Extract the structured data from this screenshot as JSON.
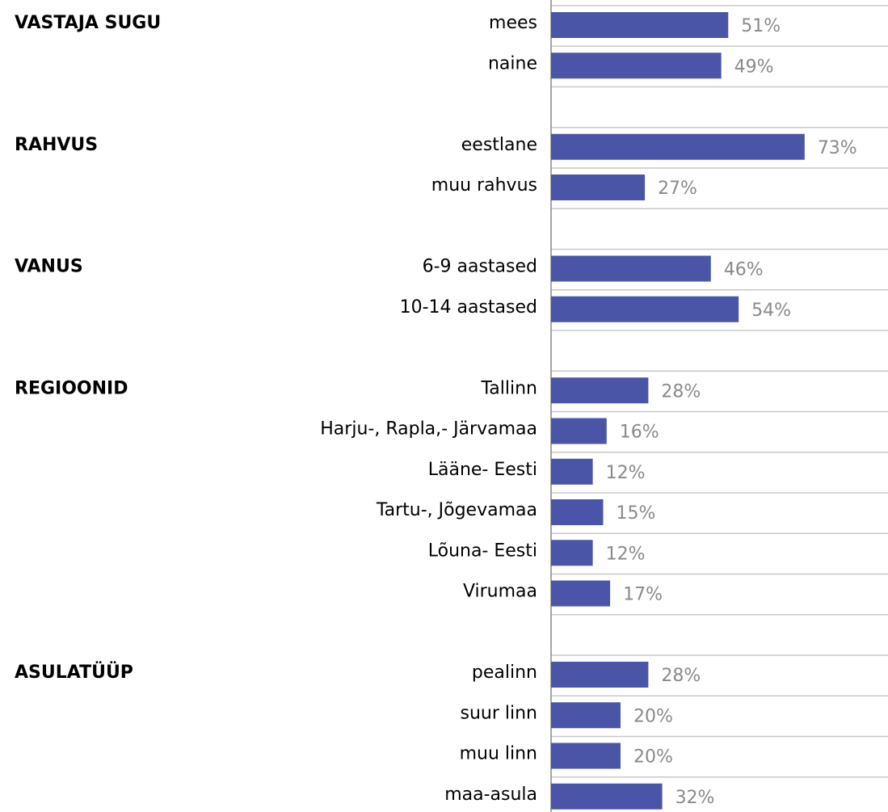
{
  "chart_data": {
    "type": "bar",
    "orientation": "horizontal",
    "color": "#4a55a8",
    "xlim": [
      0,
      97
    ],
    "groups": [
      {
        "label": "VASTAJA SUGU",
        "categories": [
          "mees",
          "naine"
        ],
        "values": [
          51,
          49
        ],
        "value_labels": [
          "51%",
          "49%"
        ]
      },
      {
        "label": "RAHVUS",
        "categories": [
          "eestlane",
          "muu rahvus"
        ],
        "values": [
          73,
          27
        ],
        "value_labels": [
          "73%",
          "27%"
        ]
      },
      {
        "label": "VANUS",
        "categories": [
          "6-9 aastased",
          "10-14 aastased"
        ],
        "values": [
          46,
          54
        ],
        "value_labels": [
          "46%",
          "54%"
        ]
      },
      {
        "label": "REGIOONID",
        "categories": [
          "Tallinn",
          "Harju-, Rapla,- Järvamaa",
          "Lääne- Eesti",
          "Tartu-, Jõgevamaa",
          "Lõuna- Eesti",
          "Virumaa"
        ],
        "values": [
          28,
          16,
          12,
          15,
          12,
          17
        ],
        "value_labels": [
          "28%",
          "16%",
          "12%",
          "15%",
          "12%",
          "17%"
        ]
      },
      {
        "label": "ASULATÜÜP",
        "categories": [
          "pealinn",
          "suur linn",
          "muu linn",
          "maa-asula"
        ],
        "values": [
          28,
          20,
          20,
          32
        ],
        "value_labels": [
          "28%",
          "20%",
          "20%",
          "32%"
        ]
      }
    ]
  }
}
